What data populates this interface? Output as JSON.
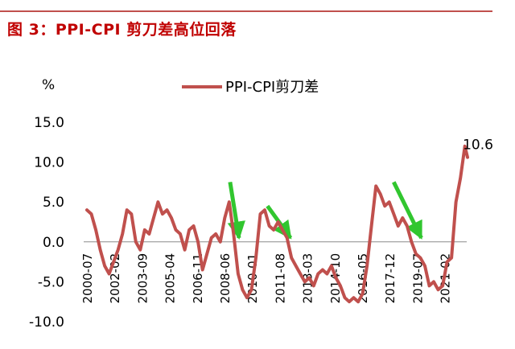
{
  "title": "图 3：PPI-CPI 剪刀差高位回落",
  "colors": {
    "series": "#c0504d",
    "arrow": "#31c62f",
    "title": "#c00000",
    "rule": "#c0504d"
  },
  "chart_data": {
    "type": "line",
    "unit_label": "%",
    "ylim": [
      -10,
      15
    ],
    "y_ticks": [
      "15.0",
      "10.0",
      "5.0",
      "0.0",
      "-5.0",
      "-10.0"
    ],
    "x_ticks": [
      "2000-07",
      "2002-02",
      "2003-09",
      "2005-04",
      "2006-11",
      "2008-06",
      "2010-01",
      "2011-08",
      "2013-03",
      "2014-10",
      "2016-05",
      "2017-12",
      "2019-07",
      "2021-02"
    ],
    "legend": {
      "position": "top-center"
    },
    "grid": false,
    "series": [
      {
        "name": "PPI-CPI剪刀差",
        "x": [
          2000.5,
          2000.75,
          2001.0,
          2001.25,
          2001.5,
          2001.75,
          2002.0,
          2002.25,
          2002.5,
          2002.75,
          2003.0,
          2003.25,
          2003.5,
          2003.75,
          2004.0,
          2004.25,
          2004.5,
          2004.75,
          2005.0,
          2005.25,
          2005.5,
          2005.75,
          2006.0,
          2006.25,
          2006.5,
          2006.75,
          2007.0,
          2007.25,
          2007.5,
          2007.75,
          2008.0,
          2008.25,
          2008.5,
          2008.75,
          2009.0,
          2009.25,
          2009.5,
          2009.75,
          2010.0,
          2010.25,
          2010.5,
          2010.75,
          2011.0,
          2011.25,
          2011.5,
          2011.75,
          2012.0,
          2012.25,
          2012.5,
          2012.75,
          2013.0,
          2013.25,
          2013.5,
          2013.75,
          2014.0,
          2014.25,
          2014.5,
          2014.75,
          2015.0,
          2015.25,
          2015.5,
          2015.75,
          2016.0,
          2016.25,
          2016.5,
          2016.75,
          2017.0,
          2017.25,
          2017.5,
          2017.75,
          2018.0,
          2018.25,
          2018.5,
          2018.75,
          2019.0,
          2019.25,
          2019.5,
          2019.75,
          2020.0,
          2020.25,
          2020.5,
          2020.75,
          2021.0,
          2021.25,
          2021.5,
          2021.75,
          2021.9
        ],
        "values": [
          4.0,
          3.5,
          1.5,
          -1.0,
          -3.0,
          -4.0,
          -2.5,
          -1.0,
          1.0,
          4.0,
          3.5,
          0.0,
          -1.0,
          1.5,
          1.0,
          3.0,
          5.0,
          3.5,
          4.0,
          3.0,
          1.5,
          1.0,
          -1.0,
          1.5,
          2.0,
          0.0,
          -3.5,
          -1.5,
          0.5,
          1.0,
          0.0,
          3.0,
          5.0,
          1.0,
          -4.0,
          -6.0,
          -7.0,
          -6.0,
          -2.0,
          3.5,
          4.0,
          2.0,
          1.5,
          2.5,
          1.5,
          0.5,
          -2.0,
          -3.0,
          -4.0,
          -5.0,
          -4.5,
          -5.5,
          -4.0,
          -3.5,
          -4.0,
          -3.0,
          -4.5,
          -5.5,
          -7.0,
          -7.5,
          -7.0,
          -7.5,
          -6.5,
          -3.0,
          2.0,
          7.0,
          6.0,
          4.5,
          5.0,
          3.5,
          2.0,
          3.0,
          2.0,
          0.0,
          -1.5,
          -2.0,
          -3.0,
          -5.5,
          -5.0,
          -6.0,
          -5.5,
          -2.5,
          -2.0,
          5.0,
          8.0,
          12.0,
          10.6
        ]
      }
    ],
    "annotations": [
      {
        "text": "10.6",
        "x": 2021.9,
        "y": 10.6
      }
    ],
    "arrows": [
      {
        "from": [
          2008.55,
          7.5
        ],
        "to": [
          2009.05,
          0.5
        ]
      },
      {
        "from": [
          2010.65,
          4.5
        ],
        "to": [
          2011.95,
          0.5
        ]
      },
      {
        "from": [
          2017.75,
          7.5
        ],
        "to": [
          2019.3,
          0.5
        ]
      }
    ]
  }
}
